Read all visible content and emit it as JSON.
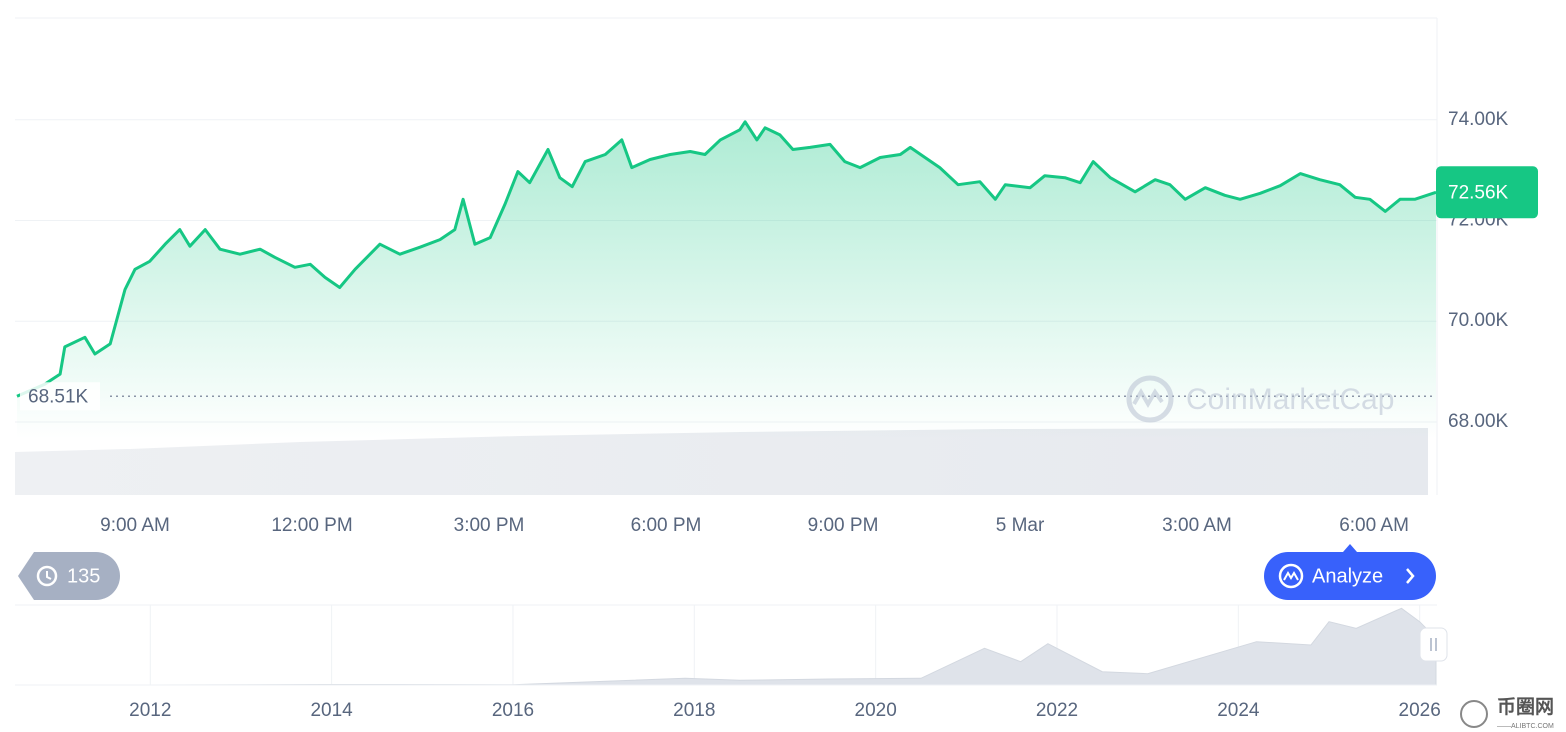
{
  "chart_data": [
    {
      "type": "line",
      "color": "#16c784",
      "x": [
        0,
        0.47,
        0.73,
        0.81,
        1.15,
        1.32,
        1.58,
        1.83,
        2.0,
        2.25,
        2.51,
        2.76,
        2.93,
        3.19,
        3.44,
        3.78,
        4.12,
        4.37,
        4.71,
        4.97,
        5.22,
        5.47,
        5.73,
        6.15,
        6.49,
        6.83,
        7.17,
        7.42,
        7.56,
        7.76,
        8.02,
        8.27,
        8.49,
        8.69,
        9.0,
        9.2,
        9.41,
        9.63,
        9.97,
        10.25,
        10.42,
        10.73,
        11.07,
        11.41,
        11.66,
        11.92,
        12.25,
        12.34,
        12.54,
        12.68,
        12.93,
        13.15,
        13.44,
        13.78,
        14.03,
        14.29,
        14.63,
        14.97,
        15.14,
        15.39,
        15.64,
        15.95,
        16.32,
        16.58,
        16.75,
        17.17,
        17.42,
        17.76,
        18.02,
        18.24,
        18.53,
        18.95,
        19.29,
        19.54,
        19.8,
        20.14,
        20.47,
        20.73,
        21.07,
        21.41,
        21.75,
        22.08,
        22.42,
        22.68,
        22.93,
        23.19,
        23.44,
        23.69,
        24.05
      ],
      "values": [
        68510,
        68750,
        68950,
        69490,
        69680,
        69350,
        69550,
        70630,
        71030,
        71190,
        71530,
        71820,
        71490,
        71820,
        71430,
        71330,
        71430,
        71270,
        71070,
        71130,
        70870,
        70670,
        71030,
        71530,
        71330,
        71470,
        71620,
        71820,
        72420,
        71530,
        71660,
        72320,
        72970,
        72750,
        73410,
        72850,
        72670,
        73170,
        73310,
        73600,
        73050,
        73210,
        73310,
        73370,
        73310,
        73600,
        73800,
        73960,
        73600,
        73840,
        73700,
        73410,
        73450,
        73510,
        73170,
        73050,
        73250,
        73310,
        73450,
        73250,
        73050,
        72710,
        72770,
        72420,
        72710,
        72650,
        72890,
        72850,
        72750,
        73170,
        72850,
        72570,
        72810,
        72710,
        72420,
        72650,
        72500,
        72420,
        72540,
        72690,
        72930,
        72810,
        72710,
        72460,
        72420,
        72180,
        72420,
        72420,
        72560
      ],
      "xlim": [
        0,
        24.05
      ],
      "xticks": [
        {
          "value": 2,
          "label": "9:00 AM"
        },
        {
          "value": 5,
          "label": "12:00 PM"
        },
        {
          "value": 8,
          "label": "3:00 PM"
        },
        {
          "value": 11,
          "label": "6:00 PM"
        },
        {
          "value": 14,
          "label": "9:00 PM"
        },
        {
          "value": 17,
          "label": "5 Mar"
        },
        {
          "value": 20,
          "label": "3:00 AM"
        },
        {
          "value": 23,
          "label": "6:00 AM"
        }
      ],
      "ylim": [
        66550,
        76020
      ],
      "yticks": [
        {
          "value": 68000,
          "label": "68.00K"
        },
        {
          "value": 70000,
          "label": "70.00K"
        },
        {
          "value": 72000,
          "label": "72.00K"
        },
        {
          "value": 74000,
          "label": "74.00K"
        }
      ],
      "grid": true,
      "open_price": {
        "value": 68510,
        "label": "68.51K"
      },
      "current_price": {
        "value": 72560,
        "label": "72.56K"
      }
    },
    {
      "type": "area",
      "color": "#dfe3ea",
      "x": [
        2010.53,
        2012,
        2013.9,
        2016,
        2017.9,
        2018.5,
        2019.5,
        2020.5,
        2021.2,
        2021.6,
        2021.9,
        2022.5,
        2023,
        2024.2,
        2024.8,
        2025.0,
        2025.3,
        2025.8,
        2026.0,
        2026.18
      ],
      "values": [
        0,
        0,
        800,
        400,
        10000,
        7000,
        9000,
        10000,
        55000,
        35000,
        62000,
        20000,
        17000,
        65000,
        60000,
        95000,
        85000,
        115000,
        95000,
        70000
      ],
      "xlim": [
        2010.53,
        2026.18
      ],
      "xticks": [
        2012,
        2014,
        2016,
        2018,
        2020,
        2022,
        2024,
        2026
      ],
      "ylim": [
        0,
        120000
      ]
    }
  ],
  "ui": {
    "history_count": 135,
    "analyze_button": "Analyze",
    "watermark": "CoinMarketCap",
    "site_logo": "币圈网",
    "site_url": "——ALIBTC.COM"
  }
}
